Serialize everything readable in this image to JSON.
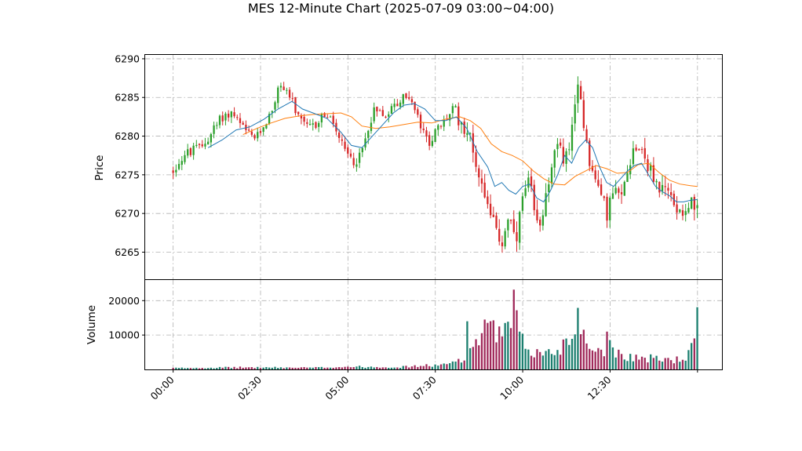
{
  "chart_data": {
    "type": "candlestick",
    "title": "MES 12-Minute Chart (2025-07-09 03:00~04:00)",
    "price_panel": {
      "ylabel": "Price",
      "ylim": [
        6261.5,
        6290.5
      ],
      "yticks": [
        6265,
        6270,
        6275,
        6280,
        6285,
        6290
      ]
    },
    "volume_panel": {
      "ylabel": "Volume",
      "ylim": [
        0,
        26000
      ],
      "yticks": [
        10000,
        20000
      ]
    },
    "x_range": [
      -0.8,
      15.7
    ],
    "xticks": [
      {
        "label": "00:00",
        "x": 0.0
      },
      {
        "label": "02:30",
        "x": 2.5
      },
      {
        "label": "05:00",
        "x": 5.0
      },
      {
        "label": "07:30",
        "x": 7.5
      },
      {
        "label": "10:00",
        "x": 10.0
      },
      {
        "label": "12:30",
        "x": 12.5
      },
      {
        "label": "",
        "x": 15.0
      }
    ],
    "colors": {
      "up": "#2ca02c",
      "down": "#d62728",
      "ma_short": "#1f77b4",
      "ma_long": "#ff7f0e",
      "vol_up": "#1b7f6f",
      "vol_down": "#a0295a"
    },
    "price_path": [
      [
        0.0,
        6275.5
      ],
      [
        0.3,
        6277.5
      ],
      [
        0.6,
        6278.2
      ],
      [
        0.9,
        6279.0
      ],
      [
        1.1,
        6280.5
      ],
      [
        1.4,
        6282.5
      ],
      [
        1.7,
        6283.0
      ],
      [
        1.9,
        6281.5
      ],
      [
        2.2,
        6280.0
      ],
      [
        2.4,
        6279.8
      ],
      [
        2.6,
        6281.5
      ],
      [
        2.8,
        6283.0
      ],
      [
        3.0,
        6286.0
      ],
      [
        3.2,
        6286.5
      ],
      [
        3.4,
        6284.5
      ],
      [
        3.6,
        6282.0
      ],
      [
        3.9,
        6281.0
      ],
      [
        4.1,
        6281.5
      ],
      [
        4.3,
        6283.0
      ],
      [
        4.6,
        6281.5
      ],
      [
        4.8,
        6279.0
      ],
      [
        5.0,
        6277.5
      ],
      [
        5.2,
        6276.5
      ],
      [
        5.4,
        6278.0
      ],
      [
        5.6,
        6281.5
      ],
      [
        5.8,
        6284.0
      ],
      [
        6.0,
        6282.5
      ],
      [
        6.2,
        6283.5
      ],
      [
        6.5,
        6284.5
      ],
      [
        6.7,
        6285.5
      ],
      [
        6.9,
        6283.5
      ],
      [
        7.1,
        6281.0
      ],
      [
        7.3,
        6279.0
      ],
      [
        7.5,
        6280.5
      ],
      [
        7.7,
        6281.5
      ],
      [
        8.0,
        6283.5
      ],
      [
        8.2,
        6282.0
      ],
      [
        8.4,
        6281.0
      ],
      [
        8.6,
        6278.0
      ],
      [
        8.8,
        6274.0
      ],
      [
        9.0,
        6272.0
      ],
      [
        9.2,
        6268.0
      ],
      [
        9.4,
        6266.0
      ],
      [
        9.6,
        6270.0
      ],
      [
        9.8,
        6265.5
      ],
      [
        10.0,
        6272.0
      ],
      [
        10.2,
        6274.0
      ],
      [
        10.4,
        6268.0
      ],
      [
        10.6,
        6271.0
      ],
      [
        10.8,
        6276.0
      ],
      [
        11.0,
        6278.5
      ],
      [
        11.2,
        6277.0
      ],
      [
        11.4,
        6280.0
      ],
      [
        11.6,
        6287.0
      ],
      [
        11.8,
        6280.0
      ],
      [
        12.0,
        6275.0
      ],
      [
        12.2,
        6273.0
      ],
      [
        12.4,
        6270.0
      ],
      [
        12.6,
        6273.0
      ],
      [
        12.8,
        6271.5
      ],
      [
        13.0,
        6276.0
      ],
      [
        13.2,
        6279.0
      ],
      [
        13.4,
        6278.5
      ],
      [
        13.6,
        6276.0
      ],
      [
        13.8,
        6274.0
      ],
      [
        14.0,
        6273.0
      ],
      [
        14.2,
        6272.5
      ],
      [
        14.4,
        6271.0
      ],
      [
        14.6,
        6270.5
      ],
      [
        14.8,
        6271.5
      ],
      [
        15.0,
        6270.0
      ]
    ],
    "ma_short": [
      [
        1.0,
        6278.5
      ],
      [
        1.4,
        6279.5
      ],
      [
        1.8,
        6280.8
      ],
      [
        2.2,
        6281.2
      ],
      [
        2.6,
        6282.2
      ],
      [
        3.0,
        6283.5
      ],
      [
        3.4,
        6284.5
      ],
      [
        3.7,
        6283.5
      ],
      [
        4.0,
        6283.0
      ],
      [
        4.4,
        6282.3
      ],
      [
        4.8,
        6280.5
      ],
      [
        5.1,
        6278.8
      ],
      [
        5.4,
        6278.5
      ],
      [
        5.7,
        6280.0
      ],
      [
        6.0,
        6281.5
      ],
      [
        6.3,
        6283.0
      ],
      [
        6.6,
        6284.0
      ],
      [
        6.9,
        6284.2
      ],
      [
        7.2,
        6283.5
      ],
      [
        7.5,
        6282.0
      ],
      [
        7.8,
        6282.0
      ],
      [
        8.1,
        6282.5
      ],
      [
        8.4,
        6281.0
      ],
      [
        8.7,
        6278.0
      ],
      [
        9.0,
        6276.0
      ],
      [
        9.2,
        6273.5
      ],
      [
        9.4,
        6274.0
      ],
      [
        9.6,
        6273.0
      ],
      [
        9.8,
        6272.5
      ],
      [
        10.0,
        6273.5
      ],
      [
        10.2,
        6273.8
      ],
      [
        10.4,
        6272.0
      ],
      [
        10.6,
        6271.5
      ],
      [
        10.8,
        6273.0
      ],
      [
        11.0,
        6275.0
      ],
      [
        11.2,
        6277.5
      ],
      [
        11.4,
        6276.5
      ],
      [
        11.6,
        6278.5
      ],
      [
        11.8,
        6279.5
      ],
      [
        12.0,
        6278.5
      ],
      [
        12.2,
        6276.0
      ],
      [
        12.4,
        6274.0
      ],
      [
        12.6,
        6273.5
      ],
      [
        12.8,
        6274.5
      ],
      [
        13.0,
        6275.5
      ],
      [
        13.2,
        6276.2
      ],
      [
        13.4,
        6276.5
      ],
      [
        13.6,
        6275.0
      ],
      [
        13.8,
        6273.5
      ],
      [
        14.0,
        6272.8
      ],
      [
        14.2,
        6272.3
      ],
      [
        14.4,
        6271.5
      ],
      [
        14.6,
        6271.5
      ],
      [
        14.8,
        6271.7
      ],
      [
        15.0,
        6271.8
      ]
    ],
    "ma_long": [
      [
        2.0,
        6280.2
      ],
      [
        2.4,
        6281.0
      ],
      [
        2.8,
        6281.7
      ],
      [
        3.2,
        6282.3
      ],
      [
        3.6,
        6282.6
      ],
      [
        4.0,
        6282.8
      ],
      [
        4.4,
        6282.9
      ],
      [
        4.8,
        6283.0
      ],
      [
        5.1,
        6282.5
      ],
      [
        5.4,
        6281.3
      ],
      [
        5.8,
        6281.0
      ],
      [
        6.2,
        6281.2
      ],
      [
        6.6,
        6281.5
      ],
      [
        7.0,
        6281.8
      ],
      [
        7.4,
        6281.7
      ],
      [
        7.8,
        6282.2
      ],
      [
        8.2,
        6282.5
      ],
      [
        8.5,
        6282.0
      ],
      [
        8.8,
        6281.0
      ],
      [
        9.1,
        6279.0
      ],
      [
        9.4,
        6278.0
      ],
      [
        9.7,
        6277.5
      ],
      [
        10.0,
        6276.8
      ],
      [
        10.3,
        6275.5
      ],
      [
        10.6,
        6274.5
      ],
      [
        10.9,
        6273.8
      ],
      [
        11.2,
        6273.7
      ],
      [
        11.5,
        6274.8
      ],
      [
        11.8,
        6275.5
      ],
      [
        12.1,
        6276.2
      ],
      [
        12.4,
        6275.8
      ],
      [
        12.7,
        6275.2
      ],
      [
        13.0,
        6275.3
      ],
      [
        13.3,
        6276.3
      ],
      [
        13.6,
        6276.5
      ],
      [
        13.9,
        6275.3
      ],
      [
        14.2,
        6274.3
      ],
      [
        14.5,
        6273.8
      ],
      [
        14.8,
        6273.6
      ],
      [
        15.0,
        6273.5
      ]
    ],
    "volume_profile": [
      [
        0.0,
        400
      ],
      [
        2.0,
        600
      ],
      [
        4.0,
        500
      ],
      [
        5.0,
        800
      ],
      [
        6.5,
        700
      ],
      [
        7.2,
        1100
      ],
      [
        7.8,
        1300
      ],
      [
        8.3,
        3500
      ],
      [
        8.6,
        8000
      ],
      [
        8.9,
        10000
      ],
      [
        9.2,
        11000
      ],
      [
        9.5,
        10000
      ],
      [
        9.7,
        12500
      ],
      [
        10.0,
        7500
      ],
      [
        10.3,
        5000
      ],
      [
        10.6,
        4500
      ],
      [
        11.0,
        5500
      ],
      [
        11.3,
        9000
      ],
      [
        11.6,
        10500
      ],
      [
        11.9,
        7500
      ],
      [
        12.2,
        5500
      ],
      [
        12.5,
        6500
      ],
      [
        12.8,
        4500
      ],
      [
        13.2,
        3500
      ],
      [
        13.6,
        3200
      ],
      [
        14.0,
        3000
      ],
      [
        14.4,
        2800
      ],
      [
        14.7,
        3500
      ],
      [
        15.0,
        9000
      ]
    ],
    "volume_spikes": [
      [
        8.45,
        14000
      ],
      [
        8.9,
        14500
      ],
      [
        9.3,
        12500
      ],
      [
        9.75,
        23200
      ],
      [
        9.85,
        17200
      ],
      [
        11.55,
        16800
      ],
      [
        11.6,
        17900
      ],
      [
        12.45,
        11000
      ],
      [
        15.0,
        18100
      ]
    ],
    "candle_step": 0.0833
  }
}
